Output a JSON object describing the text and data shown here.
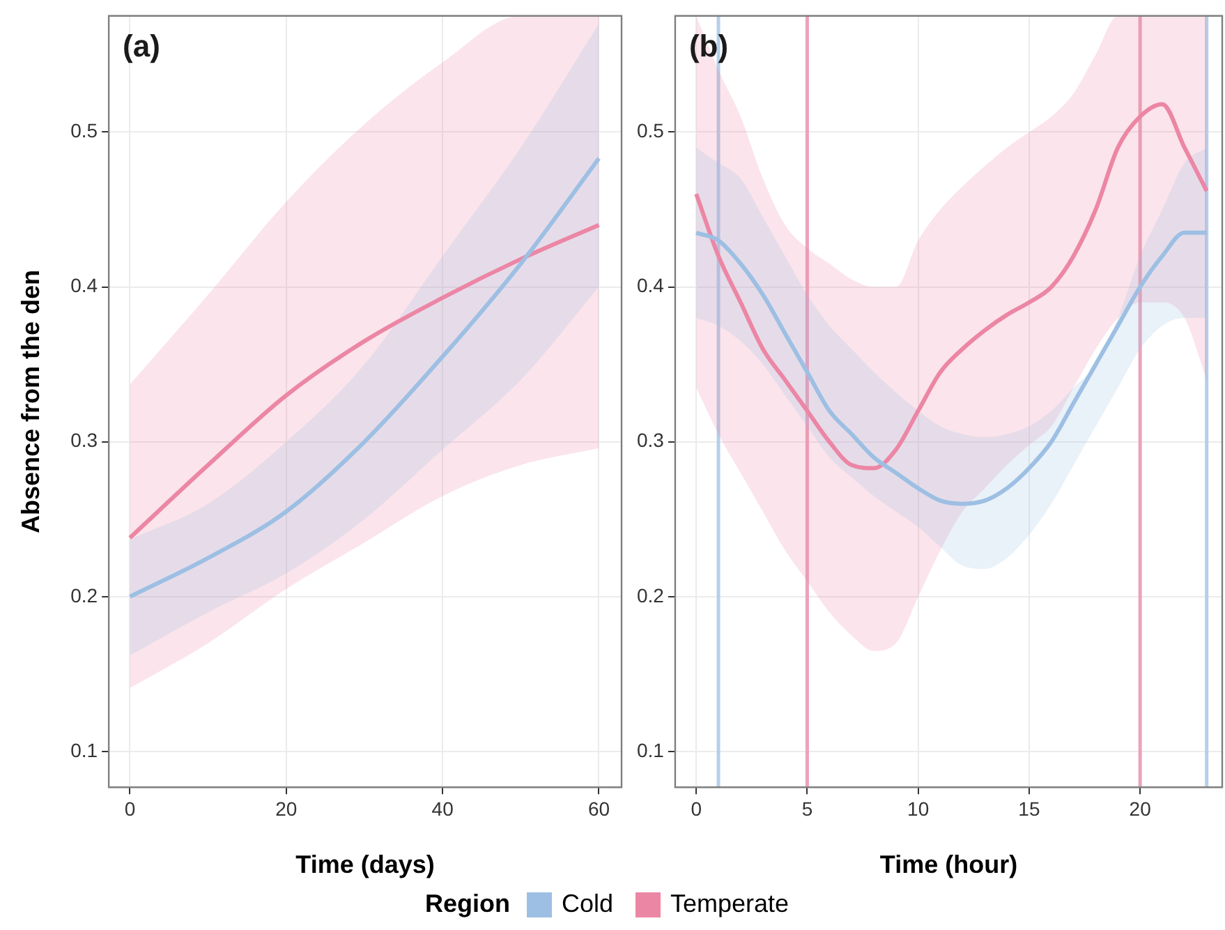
{
  "chart_data": [
    {
      "type": "line",
      "title": "(a)",
      "xlabel": "Time (days)",
      "ylabel": "Absence from the den",
      "legend_title": "Region",
      "legend": "bottom",
      "grid": true,
      "xlim": [
        -2.7,
        62.9
      ],
      "xticks": [
        0,
        20,
        40,
        60
      ],
      "ylim": [
        0.077,
        0.575
      ],
      "yticks": [
        0.1,
        0.2,
        0.3,
        0.4,
        0.5
      ],
      "series": [
        {
          "name": "Cold",
          "color": "#9dbfe3",
          "x": [
            0,
            10,
            20,
            30,
            40,
            50,
            60
          ],
          "values": [
            0.2,
            0.225,
            0.255,
            0.3,
            0.355,
            0.415,
            0.483
          ],
          "lower": [
            0.162,
            0.19,
            0.215,
            0.25,
            0.295,
            0.34,
            0.4
          ],
          "upper": [
            0.237,
            0.26,
            0.3,
            0.35,
            0.42,
            0.49,
            0.57
          ]
        },
        {
          "name": "Temperate",
          "color": "#ec86a5",
          "x": [
            0,
            10,
            20,
            30,
            40,
            50,
            60
          ],
          "values": [
            0.238,
            0.285,
            0.33,
            0.365,
            0.393,
            0.418,
            0.44
          ],
          "lower": [
            0.141,
            0.17,
            0.205,
            0.235,
            0.265,
            0.285,
            0.296
          ],
          "upper": [
            0.337,
            0.395,
            0.455,
            0.505,
            0.545,
            0.575,
            0.575
          ]
        }
      ]
    },
    {
      "type": "line",
      "title": "(b)",
      "xlabel": "Time (hour)",
      "grid": true,
      "xlim": [
        -0.95,
        23.7
      ],
      "xticks": [
        0,
        5,
        10,
        15,
        20
      ],
      "ylim": [
        0.077,
        0.575
      ],
      "yticks": [
        0.1,
        0.2,
        0.3,
        0.4,
        0.5
      ],
      "ref_lines": [
        {
          "axis": "x",
          "value": 1,
          "color": "#b5cfea"
        },
        {
          "axis": "x",
          "value": 5,
          "color": "#eba3ba"
        },
        {
          "axis": "x",
          "value": 20,
          "color": "#eba3ba"
        },
        {
          "axis": "x",
          "value": 23,
          "color": "#b5cfea"
        }
      ],
      "series": [
        {
          "color": "#9dbfe3",
          "x": [
            0,
            1,
            2,
            3,
            4,
            5,
            6,
            7,
            8,
            9,
            10,
            11,
            12,
            13,
            14,
            15,
            16,
            17,
            18,
            19,
            20,
            21,
            22,
            23
          ],
          "values": [
            0.435,
            0.43,
            0.415,
            0.395,
            0.37,
            0.345,
            0.32,
            0.305,
            0.29,
            0.28,
            0.27,
            0.262,
            0.26,
            0.262,
            0.27,
            0.283,
            0.3,
            0.325,
            0.35,
            0.375,
            0.4,
            0.42,
            0.435,
            0.435
          ],
          "lower": [
            0.38,
            0.375,
            0.365,
            0.35,
            0.33,
            0.31,
            0.29,
            0.277,
            0.265,
            0.255,
            0.245,
            0.232,
            0.22,
            0.218,
            0.225,
            0.24,
            0.26,
            0.285,
            0.31,
            0.335,
            0.36,
            0.375,
            0.38,
            0.38
          ],
          "upper": [
            0.49,
            0.48,
            0.47,
            0.445,
            0.42,
            0.395,
            0.375,
            0.36,
            0.345,
            0.332,
            0.32,
            0.31,
            0.305,
            0.303,
            0.305,
            0.31,
            0.32,
            0.335,
            0.35,
            0.38,
            0.42,
            0.45,
            0.48,
            0.49
          ]
        },
        {
          "color": "#ec86a5",
          "x": [
            0,
            1,
            2,
            3,
            4,
            5,
            6,
            7,
            8,
            9,
            10,
            11,
            12,
            13,
            14,
            15,
            16,
            17,
            18,
            19,
            20,
            21,
            22,
            23
          ],
          "values": [
            0.46,
            0.42,
            0.39,
            0.36,
            0.34,
            0.32,
            0.3,
            0.285,
            0.283,
            0.295,
            0.32,
            0.345,
            0.36,
            0.372,
            0.382,
            0.39,
            0.4,
            0.42,
            0.45,
            0.49,
            0.51,
            0.518,
            0.49,
            0.462
          ],
          "lower": [
            0.335,
            0.305,
            0.28,
            0.255,
            0.23,
            0.21,
            0.19,
            0.175,
            0.165,
            0.17,
            0.2,
            0.23,
            0.255,
            0.27,
            0.285,
            0.298,
            0.31,
            0.335,
            0.36,
            0.38,
            0.39,
            0.39,
            0.38,
            0.34
          ],
          "upper": [
            0.575,
            0.54,
            0.51,
            0.47,
            0.44,
            0.425,
            0.415,
            0.405,
            0.4,
            0.4,
            0.43,
            0.45,
            0.465,
            0.478,
            0.49,
            0.5,
            0.51,
            0.525,
            0.55,
            0.575,
            0.575,
            0.575,
            0.575,
            0.575
          ]
        }
      ]
    }
  ]
}
